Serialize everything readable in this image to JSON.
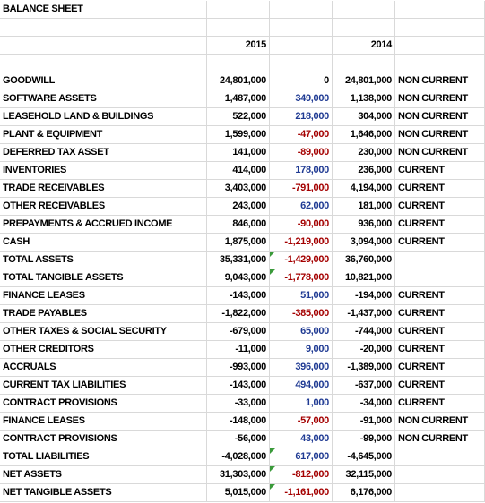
{
  "title": "BALANCE SHEET",
  "header": [
    "2015",
    "2014"
  ],
  "rows": [
    [
      "GOODWILL",
      "24,801,000",
      "0",
      "24,801,000",
      "NON CURRENT"
    ],
    [
      "SOFTWARE ASSETS",
      "1,487,000",
      "349,000",
      "1,138,000",
      "NON CURRENT"
    ],
    [
      "LEASEHOLD LAND & BUILDINGS",
      "522,000",
      "218,000",
      "304,000",
      "NON CURRENT"
    ],
    [
      "PLANT & EQUIPMENT",
      "1,599,000",
      "-47,000",
      "1,646,000",
      "NON CURRENT"
    ],
    [
      "DEFERRED TAX ASSET",
      "141,000",
      "-89,000",
      "230,000",
      "NON CURRENT"
    ],
    [
      "INVENTORIES",
      "414,000",
      "178,000",
      "236,000",
      "CURRENT"
    ],
    [
      "TRADE RECEIVABLES",
      "3,403,000",
      "-791,000",
      "4,194,000",
      "CURRENT"
    ],
    [
      "OTHER RECEIVABLES",
      "243,000",
      "62,000",
      "181,000",
      "CURRENT"
    ],
    [
      "PREPAYMENTS & ACCRUED INCOME",
      "846,000",
      "-90,000",
      "936,000",
      "CURRENT"
    ],
    [
      "CASH",
      "1,875,000",
      "-1,219,000",
      "3,094,000",
      "CURRENT"
    ],
    [
      "TOTAL ASSETS",
      "35,331,000",
      "-1,429,000",
      "36,760,000"
    ],
    [
      "TOTAL TANGIBLE ASSETS",
      "9,043,000",
      "-1,778,000",
      "10,821,000"
    ],
    [
      "FINANCE LEASES",
      "-143,000",
      "51,000",
      "-194,000",
      "CURRENT"
    ],
    [
      "TRADE PAYABLES",
      "-1,822,000",
      "-385,000",
      "-1,437,000",
      "CURRENT"
    ],
    [
      "OTHER TAXES & SOCIAL SECURITY",
      "-679,000",
      "65,000",
      "-744,000",
      "CURRENT"
    ],
    [
      "OTHER CREDITORS",
      "-11,000",
      "9,000",
      "-20,000",
      "CURRENT"
    ],
    [
      "ACCRUALS",
      "-993,000",
      "396,000",
      "-1,389,000",
      "CURRENT"
    ],
    [
      "CURRENT TAX LIABILITIES",
      "-143,000",
      "494,000",
      "-637,000",
      "CURRENT"
    ],
    [
      "CONTRACT PROVISIONS",
      "-33,000",
      "1,000",
      "-34,000",
      "CURRENT"
    ],
    [
      "FINANCE LEASES",
      "-148,000",
      "-57,000",
      "-91,000",
      "NON CURRENT"
    ],
    [
      "CONTRACT PROVISIONS",
      "-56,000",
      "43,000",
      "-99,000",
      "NON CURRENT"
    ],
    [
      "TOTAL LIABILITIES",
      "-4,028,000",
      "617,000",
      "-4,645,000"
    ],
    [
      "NET ASSETS",
      "31,303,000",
      "-812,000",
      "32,115,000"
    ],
    [
      "NET TANGIBLE ASSETS",
      "5,015,000",
      "-1,161,000",
      "6,176,000"
    ]
  ]
}
